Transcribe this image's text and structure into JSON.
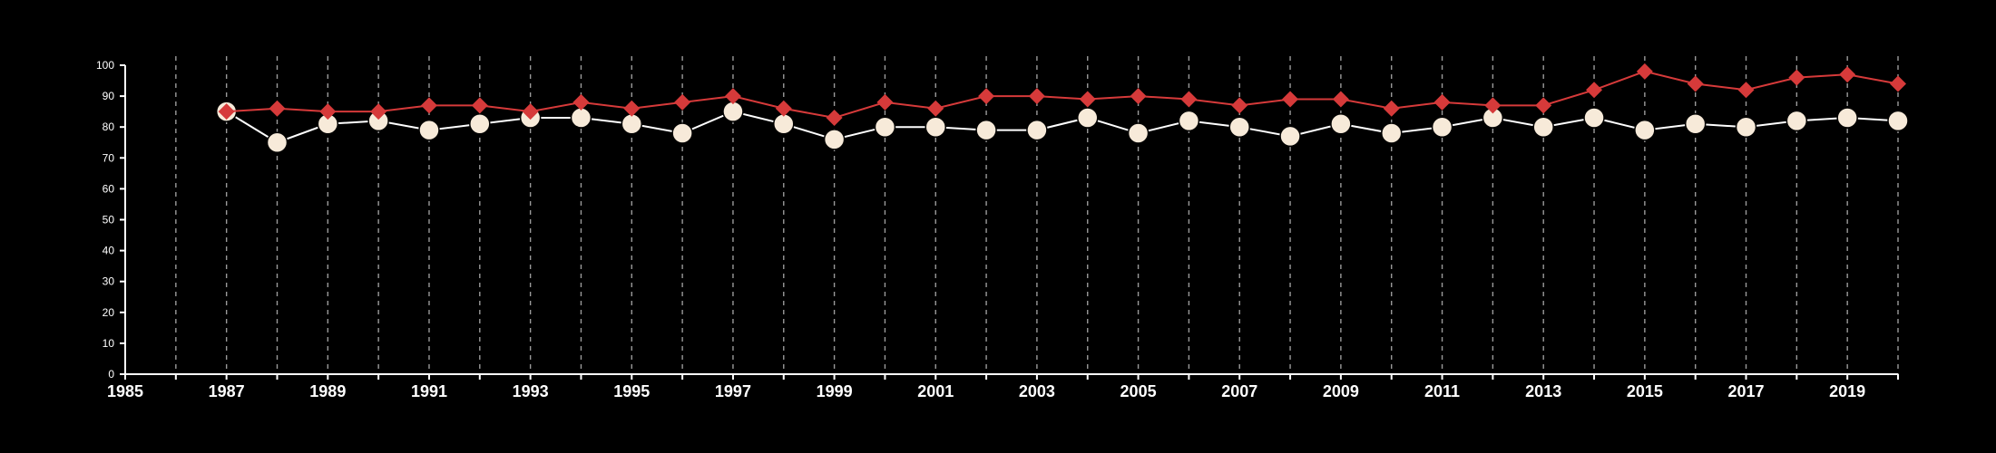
{
  "chart_data": {
    "type": "line",
    "title": "",
    "xlabel": "",
    "ylabel": "",
    "xlim": [
      1985,
      2020
    ],
    "ylim": [
      0,
      100
    ],
    "x_ticks": [
      1985,
      1987,
      1989,
      1991,
      1993,
      1995,
      1997,
      1999,
      2001,
      2003,
      2005,
      2007,
      2009,
      2011,
      2013,
      2015,
      2017,
      2019
    ],
    "y_ticks": [
      0,
      10,
      20,
      30,
      40,
      50,
      60,
      70,
      80,
      90,
      100
    ],
    "grid": "vertical dashed lines at each year",
    "legend": "none",
    "series": [
      {
        "marker": "diamond",
        "color": "#d63a3a",
        "x": [
          1987,
          1988,
          1989,
          1990,
          1991,
          1992,
          1993,
          1994,
          1995,
          1996,
          1997,
          1998,
          1999,
          2000,
          2001,
          2002,
          2003,
          2004,
          2005,
          2006,
          2007,
          2008,
          2009,
          2010,
          2011,
          2012,
          2013,
          2014,
          2015,
          2016,
          2017,
          2018,
          2019,
          2020
        ],
        "values": [
          85,
          86,
          85,
          85,
          87,
          87,
          85,
          88,
          86,
          88,
          90,
          86,
          83,
          88,
          86,
          90,
          90,
          89,
          90,
          89,
          87,
          89,
          89,
          86,
          88,
          87,
          87,
          92,
          98,
          94,
          92,
          96,
          97,
          94
        ]
      },
      {
        "marker": "circle",
        "color": "#f7ead9",
        "x": [
          1987,
          1988,
          1989,
          1990,
          1991,
          1992,
          1993,
          1994,
          1995,
          1996,
          1997,
          1998,
          1999,
          2000,
          2001,
          2002,
          2003,
          2004,
          2005,
          2006,
          2007,
          2008,
          2009,
          2010,
          2011,
          2012,
          2013,
          2014,
          2015,
          2016,
          2017,
          2018,
          2019,
          2020
        ],
        "values": [
          85,
          75,
          81,
          82,
          79,
          81,
          83,
          83,
          81,
          78,
          85,
          81,
          76,
          80,
          80,
          79,
          79,
          83,
          78,
          82,
          80,
          77,
          81,
          78,
          80,
          83,
          80,
          83,
          79,
          81,
          80,
          82,
          83,
          82
        ]
      }
    ]
  }
}
